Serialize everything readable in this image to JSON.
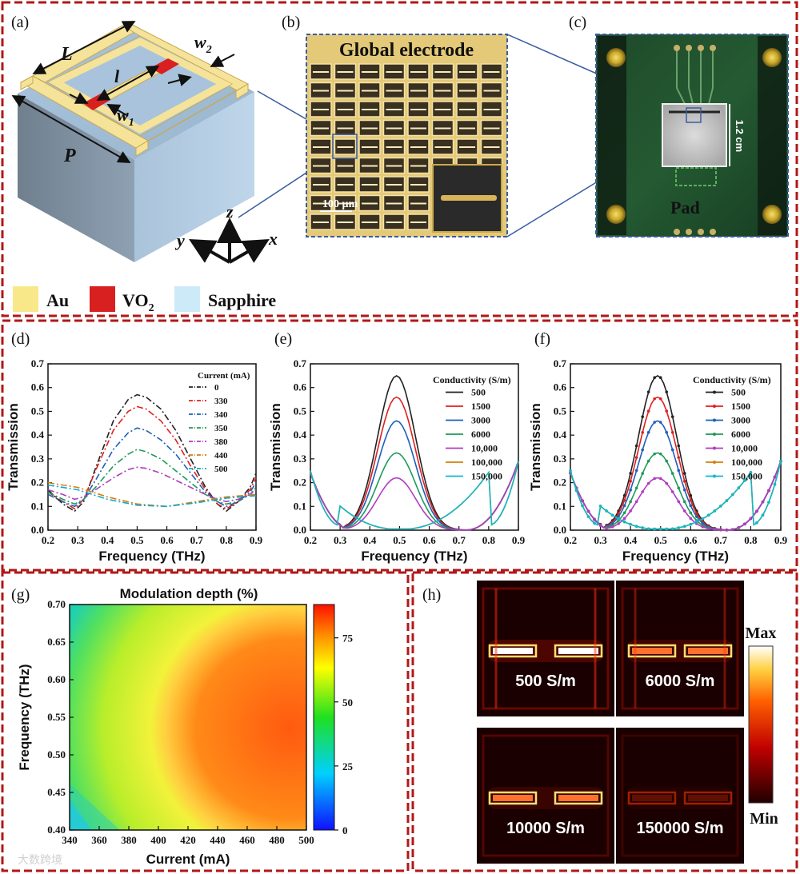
{
  "panel_labels": {
    "a": "(a)",
    "b": "(b)",
    "c": "(c)",
    "d": "(d)",
    "e": "(e)",
    "f": "(f)",
    "g": "(g)",
    "h": "(h)"
  },
  "panel_a": {
    "dims": {
      "L": "L",
      "l": "l",
      "w1": "w",
      "w1_sub": "1",
      "w2": "w",
      "w2_sub": "2",
      "P": "P"
    },
    "axes": {
      "x": "x",
      "y": "y",
      "z": "z"
    },
    "legend": [
      {
        "label": "Au",
        "color": "#f8e88a"
      },
      {
        "label": "VO",
        "sub": "2",
        "color": "#d82020"
      },
      {
        "label": "Sapphire",
        "color": "#cdeaf8"
      }
    ]
  },
  "panel_b": {
    "title": "Global electrode",
    "scalebar": "100 µm"
  },
  "panel_c": {
    "size_label": "1.2 cm",
    "pad_label": "Pad"
  },
  "chart_data": [
    {
      "id": "d",
      "type": "line",
      "xlabel": "Frequency (THz)",
      "ylabel": "Transmission",
      "xlim": [
        0.2,
        0.9
      ],
      "ylim": [
        0.0,
        0.7
      ],
      "xticks": [
        "0.2",
        "0.3",
        "0.4",
        "0.5",
        "0.6",
        "0.7",
        "0.8",
        "0.9"
      ],
      "yticks": [
        "0.0",
        "0.1",
        "0.2",
        "0.3",
        "0.4",
        "0.5",
        "0.6",
        "0.7"
      ],
      "legend_title": "Current (mA)",
      "series": [
        {
          "name": "0",
          "color": "#222222",
          "dash": "8,3,2,3",
          "x": [
            0.2,
            0.25,
            0.29,
            0.32,
            0.36,
            0.42,
            0.47,
            0.5,
            0.53,
            0.58,
            0.63,
            0.68,
            0.73,
            0.77,
            0.8,
            0.84,
            0.88,
            0.9
          ],
          "y": [
            0.17,
            0.11,
            0.08,
            0.12,
            0.26,
            0.46,
            0.55,
            0.57,
            0.56,
            0.51,
            0.42,
            0.3,
            0.18,
            0.11,
            0.08,
            0.12,
            0.18,
            0.24
          ]
        },
        {
          "name": "330",
          "color": "#e02020",
          "dash": "8,3,2,3",
          "x": [
            0.2,
            0.25,
            0.29,
            0.32,
            0.36,
            0.42,
            0.47,
            0.5,
            0.53,
            0.58,
            0.63,
            0.68,
            0.73,
            0.77,
            0.8,
            0.84,
            0.88,
            0.9
          ],
          "y": [
            0.16,
            0.12,
            0.09,
            0.13,
            0.25,
            0.42,
            0.5,
            0.52,
            0.51,
            0.46,
            0.38,
            0.27,
            0.17,
            0.11,
            0.09,
            0.12,
            0.17,
            0.22
          ]
        },
        {
          "name": "340",
          "color": "#1f5fb8",
          "dash": "8,3,2,3",
          "x": [
            0.2,
            0.25,
            0.29,
            0.32,
            0.36,
            0.42,
            0.47,
            0.5,
            0.53,
            0.58,
            0.63,
            0.68,
            0.73,
            0.77,
            0.8,
            0.84,
            0.88,
            0.9
          ],
          "y": [
            0.15,
            0.12,
            0.1,
            0.13,
            0.21,
            0.34,
            0.41,
            0.43,
            0.42,
            0.38,
            0.32,
            0.24,
            0.16,
            0.12,
            0.1,
            0.12,
            0.16,
            0.2
          ]
        },
        {
          "name": "350",
          "color": "#1f9a5a",
          "dash": "8,3,2,3",
          "x": [
            0.2,
            0.25,
            0.29,
            0.32,
            0.36,
            0.42,
            0.47,
            0.5,
            0.53,
            0.58,
            0.63,
            0.68,
            0.73,
            0.77,
            0.8,
            0.84,
            0.88,
            0.9
          ],
          "y": [
            0.16,
            0.13,
            0.11,
            0.13,
            0.18,
            0.27,
            0.32,
            0.34,
            0.33,
            0.3,
            0.25,
            0.2,
            0.15,
            0.12,
            0.11,
            0.12,
            0.15,
            0.18
          ]
        },
        {
          "name": "380",
          "color": "#b03cc0",
          "dash": "8,3,2,3",
          "x": [
            0.2,
            0.25,
            0.29,
            0.32,
            0.36,
            0.42,
            0.47,
            0.5,
            0.53,
            0.58,
            0.63,
            0.68,
            0.73,
            0.77,
            0.8,
            0.84,
            0.88,
            0.9
          ],
          "y": [
            0.17,
            0.15,
            0.13,
            0.14,
            0.17,
            0.22,
            0.255,
            0.265,
            0.26,
            0.24,
            0.21,
            0.18,
            0.15,
            0.13,
            0.12,
            0.13,
            0.15,
            0.17
          ]
        },
        {
          "name": "440",
          "color": "#d08010",
          "dash": "8,3,2,3",
          "x": [
            0.2,
            0.3,
            0.4,
            0.5,
            0.6,
            0.7,
            0.8,
            0.9
          ],
          "y": [
            0.2,
            0.18,
            0.14,
            0.11,
            0.1,
            0.12,
            0.14,
            0.15
          ]
        },
        {
          "name": "500",
          "color": "#10a8d0",
          "dash": "8,3,2,3",
          "x": [
            0.2,
            0.3,
            0.4,
            0.5,
            0.6,
            0.7,
            0.8,
            0.9
          ],
          "y": [
            0.19,
            0.17,
            0.13,
            0.105,
            0.1,
            0.115,
            0.135,
            0.145
          ]
        }
      ]
    },
    {
      "id": "e",
      "type": "line",
      "xlabel": "Frequency (THz)",
      "ylabel": "Transmission",
      "xlim": [
        0.2,
        0.9
      ],
      "ylim": [
        0.0,
        0.7
      ],
      "xticks": [
        "0.2",
        "0.3",
        "0.4",
        "0.5",
        "0.6",
        "0.7",
        "0.8",
        "0.9"
      ],
      "yticks": [
        "0.0",
        "0.1",
        "0.2",
        "0.3",
        "0.4",
        "0.5",
        "0.6",
        "0.7"
      ],
      "legend_title": "Conductivity (S/m)",
      "series": [
        {
          "name": "500",
          "color": "#222222",
          "peak": 0.65
        },
        {
          "name": "1500",
          "color": "#e02020",
          "peak": 0.56
        },
        {
          "name": "3000",
          "color": "#1f5fb8",
          "peak": 0.46
        },
        {
          "name": "6000",
          "color": "#1f9a5a",
          "peak": 0.325
        },
        {
          "name": "10,000",
          "color": "#b03cc0",
          "peak": 0.22
        },
        {
          "name": "100,000",
          "color": "#d08010",
          "peak": 0.0
        },
        {
          "name": "150,000",
          "color": "#10b8c8",
          "peak": 0.0
        }
      ]
    },
    {
      "id": "f",
      "type": "line",
      "xlabel": "Frequency (THz)",
      "ylabel": "Transmission",
      "xlim": [
        0.2,
        0.9
      ],
      "ylim": [
        0.0,
        0.7
      ],
      "xticks": [
        "0.2",
        "0.3",
        "0.4",
        "0.5",
        "0.6",
        "0.7",
        "0.8",
        "0.9"
      ],
      "yticks": [
        "0.0",
        "0.1",
        "0.2",
        "0.3",
        "0.4",
        "0.5",
        "0.6",
        "0.7"
      ],
      "legend_title": "Conductivity (S/m)",
      "markers": true,
      "series": [
        {
          "name": "500",
          "color": "#222222",
          "peak": 0.65
        },
        {
          "name": "1500",
          "color": "#e02020",
          "peak": 0.56
        },
        {
          "name": "3000",
          "color": "#1f5fb8",
          "peak": 0.46
        },
        {
          "name": "6000",
          "color": "#1f9a5a",
          "peak": 0.325
        },
        {
          "name": "10,000",
          "color": "#b03cc0",
          "peak": 0.22
        },
        {
          "name": "100,000",
          "color": "#d08010",
          "peak": 0.0
        },
        {
          "name": "150,000",
          "color": "#10b8c8",
          "peak": 0.0
        }
      ]
    },
    {
      "id": "g",
      "type": "heatmap",
      "title": "Modulation depth (%)",
      "xlabel": "Current (mA)",
      "ylabel": "Frequency (THz)",
      "xlim": [
        340,
        500
      ],
      "ylim": [
        0.4,
        0.7
      ],
      "xticks": [
        "340",
        "360",
        "380",
        "400",
        "420",
        "440",
        "460",
        "480",
        "500"
      ],
      "yticks": [
        "0.40",
        "0.45",
        "0.50",
        "0.55",
        "0.60",
        "0.65",
        "0.70"
      ],
      "colorbar": {
        "min": 0,
        "max": 88,
        "ticks": [
          "0",
          "25",
          "50",
          "75"
        ]
      }
    }
  ],
  "panel_h": {
    "labels": [
      "500 S/m",
      "6000 S/m",
      "10000 S/m",
      "150000 S/m"
    ],
    "intensity": [
      1.0,
      0.75,
      0.55,
      0.12
    ],
    "colorbar": {
      "max": "Max",
      "min": "Min"
    }
  },
  "watermark": "大数跨境"
}
